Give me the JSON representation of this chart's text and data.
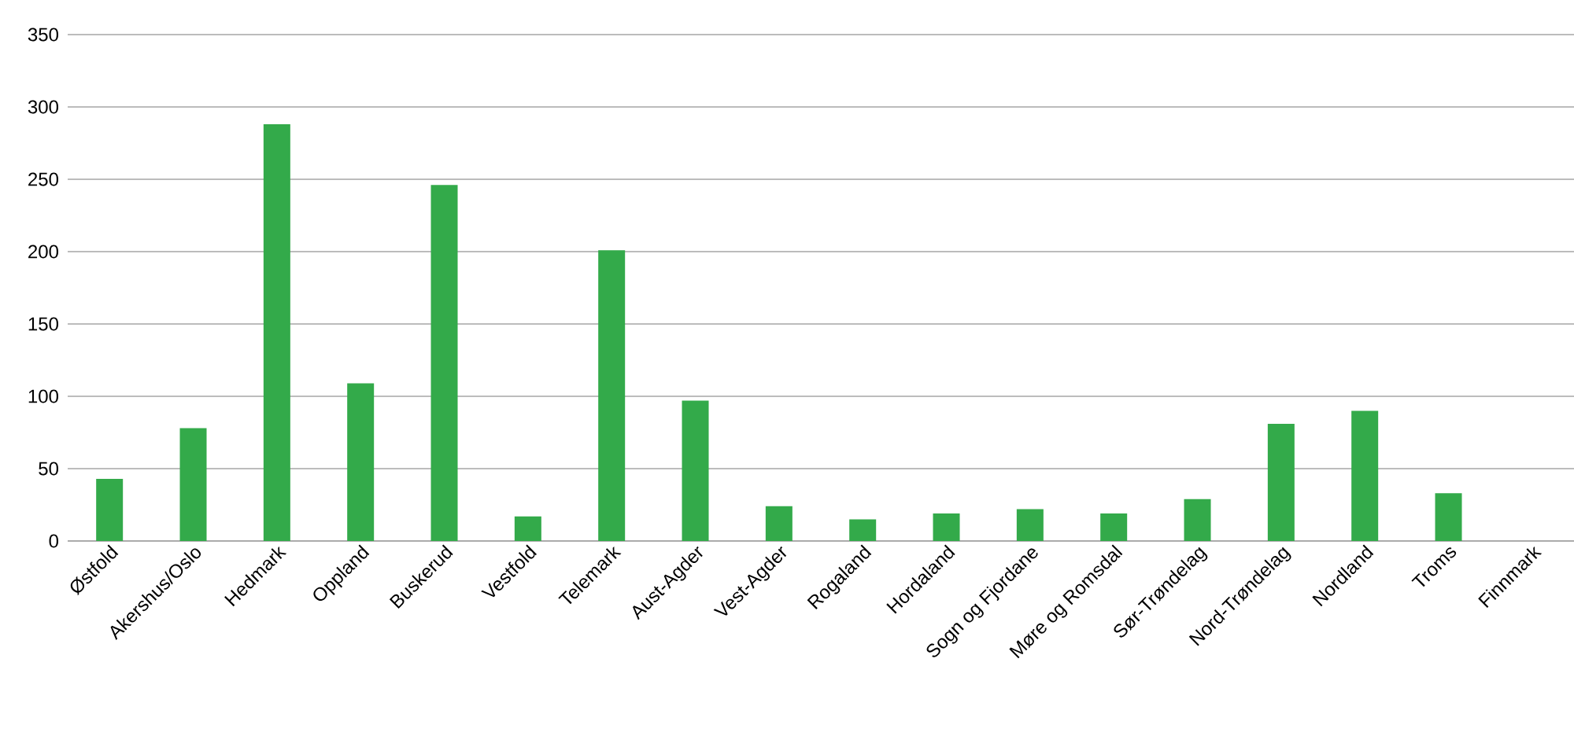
{
  "chart_data": {
    "type": "bar",
    "categories": [
      "Østfold",
      "Akershus/Oslo",
      "Hedmark",
      "Oppland",
      "Buskerud",
      "Vestfold",
      "Telemark",
      "Aust-Agder",
      "Vest-Agder",
      "Rogaland",
      "Hordaland",
      "Sogn og Fjordane",
      "Møre og Romsdal",
      "Sør-Trøndelag",
      "Nord-Trøndelag",
      "Nordland",
      "Troms",
      "Finnmark"
    ],
    "values": [
      43,
      78,
      288,
      109,
      246,
      17,
      201,
      97,
      24,
      15,
      19,
      22,
      19,
      29,
      81,
      90,
      33,
      0
    ],
    "color": "#33aa4a",
    "ylim": [
      0,
      350
    ],
    "yticks": [
      0,
      50,
      100,
      150,
      200,
      250,
      300,
      350
    ],
    "grid": "y"
  }
}
